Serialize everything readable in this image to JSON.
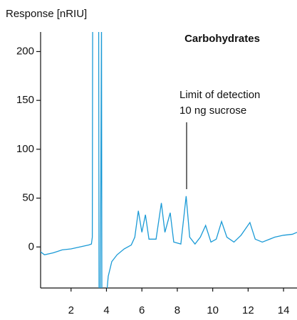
{
  "chart_data": {
    "type": "line",
    "y_label": "Response [nRIU]",
    "title": "Carbohydrates",
    "annotations": [
      "Limit of detection",
      "10 ng sucrose"
    ],
    "color": "#1a9ad6",
    "x": [
      0.28,
      0.5,
      1,
      1.5,
      2,
      2.5,
      3,
      3.15,
      3.2,
      3.22,
      3.5,
      3.56,
      3.58,
      3.65,
      3.72,
      3.74,
      4.0,
      4.1,
      4.3,
      4.6,
      5,
      5.4,
      5.6,
      5.8,
      6.0,
      6.2,
      6.4,
      6.8,
      7.1,
      7.3,
      7.6,
      7.8,
      8.2,
      8.5,
      8.7,
      9,
      9.3,
      9.6,
      9.9,
      10.2,
      10.5,
      10.8,
      11.2,
      11.6,
      12.1,
      12.4,
      12.8,
      13.5,
      14,
      14.5,
      14.76
    ],
    "values": [
      -5,
      -8,
      -6,
      -3,
      -2,
      0,
      2,
      3,
      10,
      230,
      230,
      230,
      -50,
      -50,
      230,
      -50,
      -50,
      -30,
      -15,
      -8,
      -2,
      2,
      10,
      37,
      15,
      33,
      8,
      8,
      45,
      15,
      35,
      5,
      3,
      52,
      10,
      3,
      10,
      22,
      5,
      8,
      26,
      10,
      5,
      12,
      25,
      8,
      5,
      10,
      12,
      13,
      15
    ],
    "xlim": [
      0.28,
      14.76
    ],
    "ylim": [
      -42,
      220
    ],
    "xticks": [
      2,
      4,
      6,
      8,
      10,
      12,
      14
    ],
    "yticks": [
      0,
      50,
      100,
      150,
      200
    ]
  }
}
